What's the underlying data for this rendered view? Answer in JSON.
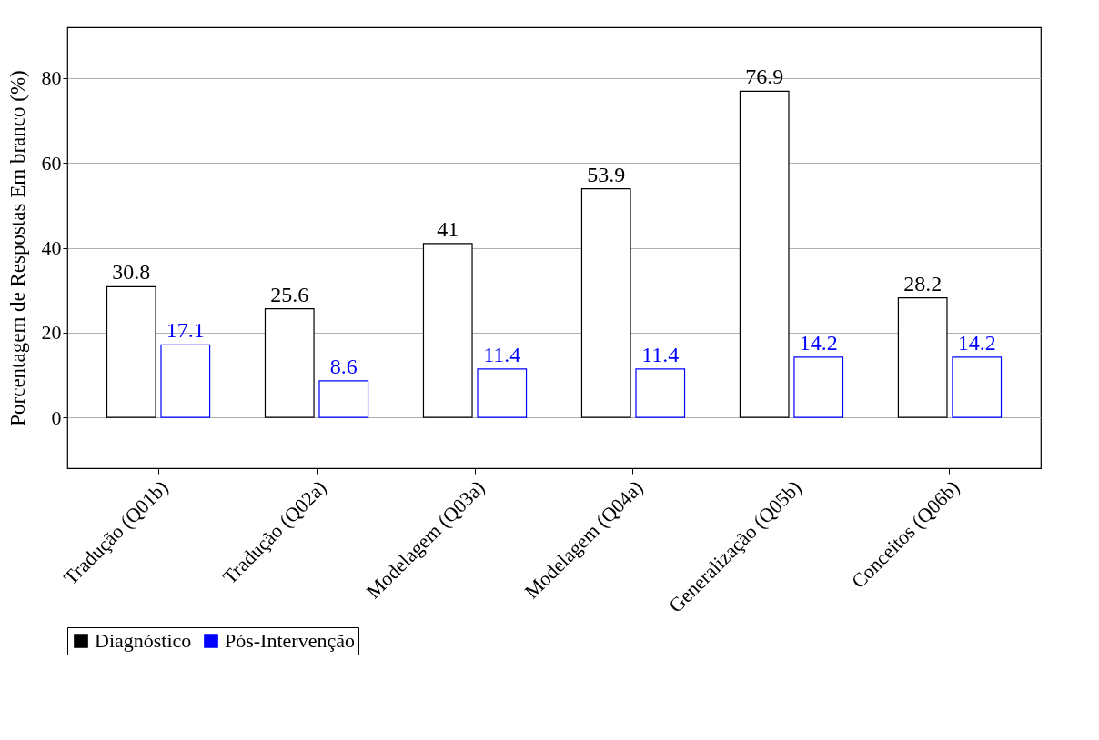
{
  "chart_data": {
    "type": "bar",
    "ylabel": "Porcentagem de Respostas Em branco (%)",
    "categories": [
      "Tradução (Q01b)",
      "Tradução (Q02a)",
      "Modelagem (Q03a)",
      "Modelagem (Q04a)",
      "Generalização (Q05b)",
      "Conceitos (Q06b)"
    ],
    "series": [
      {
        "name": "Diagnóstico",
        "color": "#000000",
        "values": [
          30.8,
          25.6,
          41,
          53.9,
          76.9,
          28.2
        ]
      },
      {
        "name": "Pós-Intervenção",
        "color": "#0000ff",
        "values": [
          17.1,
          8.6,
          11.4,
          11.4,
          14.2,
          14.2
        ]
      }
    ],
    "ylim": [
      -12,
      92
    ],
    "yticks": [
      0,
      20,
      40,
      60,
      80
    ],
    "grid": "y",
    "legend": "bottom",
    "data_labels": true
  }
}
